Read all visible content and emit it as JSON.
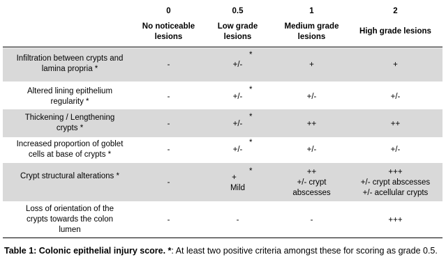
{
  "header": {
    "grades": [
      "0",
      "0.5",
      "1",
      "2"
    ],
    "descriptions": [
      [
        "No noticeable",
        "lesions"
      ],
      [
        "Low grade",
        "lesions"
      ],
      [
        "Medium grade",
        "lesions"
      ],
      [
        "High grade lesions"
      ]
    ]
  },
  "rows": [
    {
      "criterion": [
        "Infiltration between crypts and",
        "lamina propria *"
      ],
      "g0": [
        "-"
      ],
      "g05": [
        "+/-"
      ],
      "g1": [
        "+"
      ],
      "g2": [
        "+"
      ],
      "star": "*"
    },
    {
      "criterion": [
        "Altered lining epithelium",
        "regularity *"
      ],
      "g0": [
        "-"
      ],
      "g05": [
        "+/-"
      ],
      "g1": [
        "+/-"
      ],
      "g2": [
        "+/-"
      ],
      "star": "*"
    },
    {
      "criterion": [
        "Thickening / Lengthening",
        "crypts *"
      ],
      "g0": [
        "-"
      ],
      "g05": [
        "+/-"
      ],
      "g1": [
        "++"
      ],
      "g2": [
        "++"
      ],
      "star": "*"
    },
    {
      "criterion": [
        "Increased proportion of goblet",
        "cells at base of crypts *"
      ],
      "g0": [
        "-"
      ],
      "g05": [
        "+/-"
      ],
      "g1": [
        "+/-"
      ],
      "g2": [
        "+/-"
      ],
      "star": "*"
    },
    {
      "criterion": [
        "Crypt structural alterations *"
      ],
      "g0": [
        "-"
      ],
      "g05": [
        "+",
        "Mild"
      ],
      "g1": [
        "++",
        "+/- crypt",
        "abscesses"
      ],
      "g2": [
        "+++",
        "+/- crypt abscesses",
        "+/- acellular crypts"
      ],
      "star": "*"
    },
    {
      "criterion": [
        "Loss of orientation of the",
        "crypts towards the colon",
        "lumen"
      ],
      "g0": [
        "-"
      ],
      "g05": [
        "-"
      ],
      "g1": [
        "-"
      ],
      "g2": [
        "+++"
      ],
      "star": ""
    }
  ],
  "caption": {
    "bold": "Table 1: Colonic epithelial injury score. *",
    "text": ": At least two positive  criteria amongst these for scoring as grade 0.5."
  }
}
